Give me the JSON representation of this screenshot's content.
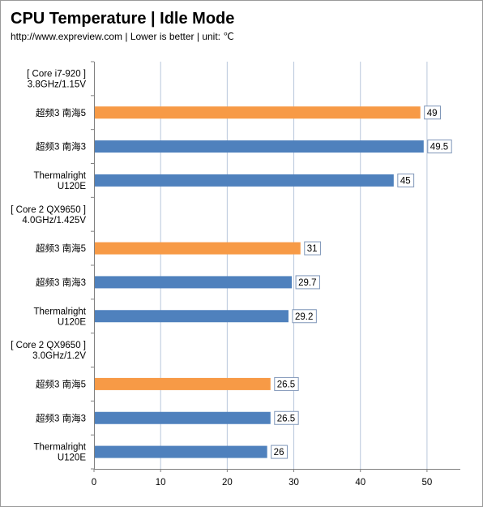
{
  "header": {
    "title": "CPU Temperature | Idle Mode",
    "subtitle": "http://www.expreview.com | Lower is better | unit: ℃"
  },
  "chart_data": {
    "type": "bar",
    "orientation": "horizontal",
    "title": "CPU Temperature | Idle Mode",
    "subtitle": "http://www.expreview.com | Lower is better | unit: ℃",
    "xlim": [
      0,
      55
    ],
    "xticks": [
      0,
      10,
      20,
      30,
      40,
      50
    ],
    "grid": true,
    "colors": {
      "orange": "#f79a46",
      "blue": "#4f81bd"
    },
    "groups": [
      {
        "label": [
          "[ Core i7-920 ]",
          "3.8GHz/1.15V"
        ],
        "bars": [
          {
            "label": [
              "超频3 南海5"
            ],
            "value": 49,
            "value_label": "49",
            "color": "orange"
          },
          {
            "label": [
              "超频3 南海3"
            ],
            "value": 49.5,
            "value_label": "49.5",
            "color": "blue"
          },
          {
            "label": [
              "Thermalright",
              "U120E"
            ],
            "value": 45,
            "value_label": "45",
            "color": "blue"
          }
        ]
      },
      {
        "label": [
          "[ Core 2 QX9650 ]",
          "4.0GHz/1.425V"
        ],
        "bars": [
          {
            "label": [
              "超频3 南海5"
            ],
            "value": 31,
            "value_label": "31",
            "color": "orange"
          },
          {
            "label": [
              "超频3 南海3"
            ],
            "value": 29.7,
            "value_label": "29.7",
            "color": "blue"
          },
          {
            "label": [
              "Thermalright",
              "U120E"
            ],
            "value": 29.2,
            "value_label": "29.2",
            "color": "blue"
          }
        ]
      },
      {
        "label": [
          "[ Core 2 QX9650 ]",
          "3.0GHz/1.2V"
        ],
        "bars": [
          {
            "label": [
              "超频3 南海5"
            ],
            "value": 26.5,
            "value_label": "26.5",
            "color": "orange"
          },
          {
            "label": [
              "超频3 南海3"
            ],
            "value": 26.5,
            "value_label": "26.5",
            "color": "blue"
          },
          {
            "label": [
              "Thermalright",
              "U120E"
            ],
            "value": 26,
            "value_label": "26",
            "color": "blue"
          }
        ]
      }
    ]
  }
}
